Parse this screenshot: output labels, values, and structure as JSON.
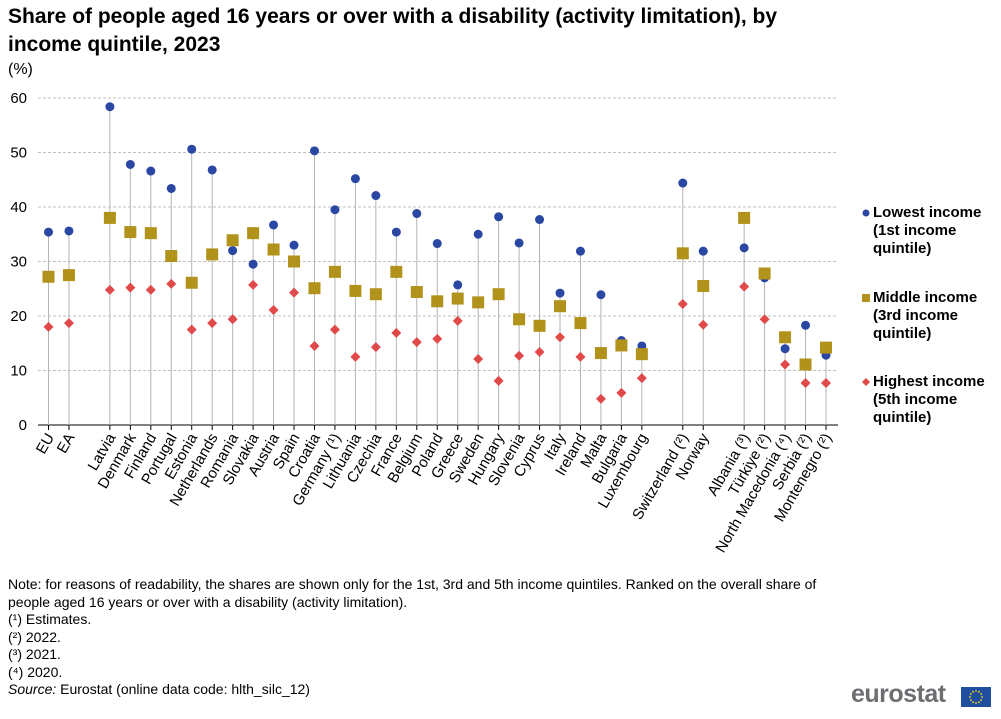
{
  "title": "Share of people aged 16 years or over with a disability (activity limitation), by income quintile, 2023",
  "unit": "(%)",
  "legend": [
    {
      "label": "Lowest income (1st income quintile)",
      "color": "#2a47a3",
      "marker": "circle"
    },
    {
      "label": "Middle income (3rd income quintile)",
      "color": "#b1921a",
      "marker": "square"
    },
    {
      "label": "Highest income (5th income quintile)",
      "color": "#e04a4a",
      "marker": "diamond"
    }
  ],
  "chart_data": {
    "type": "scatter",
    "title": "Share of people aged 16 years or over with a disability (activity limitation), by income quintile, 2023",
    "ylabel": "(%)",
    "ylim": [
      0,
      60
    ],
    "yticks": [
      0,
      10,
      20,
      30,
      40,
      50,
      60
    ],
    "grid": true,
    "legend_position": "right",
    "categories": [
      "EU",
      "EA",
      "",
      "Latvia",
      "Denmark",
      "Finland",
      "Portugal",
      "Estonia",
      "Netherlands",
      "Romania",
      "Slovakia",
      "Austria",
      "Spain",
      "Croatia",
      "Germany (¹)",
      "Lithuania",
      "Czechia",
      "France",
      "Belgium",
      "Poland",
      "Greece",
      "Sweden",
      "Hungary",
      "Slovenia",
      "Cyprus",
      "Italy",
      "Ireland",
      "Malta",
      "Bulgaria",
      "Luxembourg",
      "",
      "Switzerland (²)",
      "Norway",
      "",
      "Albania (³)",
      "Türkiye (²)",
      "North Macedonia (⁴)",
      "Serbia (²)",
      "Montenegro (²)"
    ],
    "series": [
      {
        "name": "Lowest income (1st income quintile)",
        "color": "#2a47a3",
        "marker": "circle",
        "values": [
          35.4,
          35.6,
          null,
          58.4,
          47.8,
          46.6,
          43.4,
          50.6,
          46.8,
          32.0,
          29.5,
          36.7,
          33.0,
          50.3,
          39.5,
          45.2,
          42.1,
          35.4,
          38.8,
          33.3,
          25.7,
          35.0,
          38.2,
          33.4,
          37.7,
          24.2,
          31.9,
          23.9,
          15.5,
          14.5,
          null,
          44.4,
          31.9,
          null,
          32.5,
          27.0,
          14.0,
          18.3,
          12.8
        ]
      },
      {
        "name": "Middle income (3rd income quintile)",
        "color": "#b1921a",
        "marker": "square",
        "values": [
          27.2,
          27.5,
          null,
          38.0,
          35.4,
          35.2,
          31.0,
          26.1,
          31.3,
          33.9,
          35.2,
          32.2,
          30.0,
          25.1,
          28.1,
          24.6,
          24.0,
          28.1,
          24.4,
          22.7,
          23.2,
          22.5,
          24.0,
          19.4,
          18.2,
          21.8,
          18.7,
          13.2,
          14.6,
          13.0,
          null,
          31.5,
          25.5,
          null,
          38.0,
          27.8,
          16.1,
          11.1,
          14.2
        ]
      },
      {
        "name": "Highest income (5th income quintile)",
        "color": "#e04a4a",
        "marker": "diamond",
        "values": [
          18.0,
          18.7,
          null,
          24.8,
          25.2,
          24.8,
          25.9,
          17.5,
          18.7,
          19.4,
          25.7,
          21.1,
          24.3,
          14.5,
          17.5,
          12.5,
          14.3,
          16.9,
          15.2,
          15.8,
          19.1,
          12.1,
          8.1,
          12.7,
          13.4,
          16.1,
          12.5,
          4.8,
          5.9,
          8.6,
          null,
          22.2,
          18.4,
          null,
          25.4,
          19.4,
          11.1,
          7.7,
          7.7
        ]
      }
    ]
  },
  "notes": {
    "note": "Note: for reasons of readability, the shares are shown only for the 1st, 3rd and 5th income quintiles. Ranked on the overall share of people aged 16 years or over with a disability (activity limitation).",
    "footnotes": [
      "(¹) Estimates.",
      "(²) 2022.",
      "(³) 2021.",
      "(⁴) 2020."
    ],
    "source_label": "Source:",
    "source_text": "Eurostat (online data code: hlth_silc_12)"
  },
  "logo": {
    "text": "eurostat",
    "flag_color": "#1f4e9e",
    "star_color": "#ffd617"
  }
}
